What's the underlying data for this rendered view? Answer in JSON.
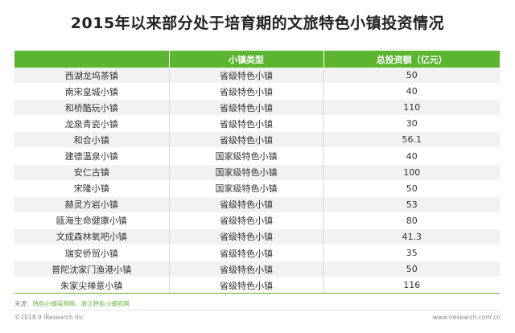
{
  "title": "2015年以来部分处于培育期的文旅特色小镇投资情况",
  "table": {
    "headers": [
      "",
      "小镇类型",
      "总投资额（亿元）"
    ],
    "rows": [
      {
        "name": "西湖龙坞茶镇",
        "type": "省级特色小镇",
        "investment": "50"
      },
      {
        "name": "南宋皇城小镇",
        "type": "省级特色小镇",
        "investment": "40"
      },
      {
        "name": "和桥酷玩小镇",
        "type": "省级特色小镇",
        "investment": "110"
      },
      {
        "name": "龙泉青瓷小镇",
        "type": "省级特色小镇",
        "investment": "30"
      },
      {
        "name": "和合小镇",
        "type": "省级特色小镇",
        "investment": "56.1"
      },
      {
        "name": "建德温泉小镇",
        "type": "国家级特色小镇",
        "investment": "40"
      },
      {
        "name": "安仁古镇",
        "type": "国家级特色小镇",
        "investment": "100"
      },
      {
        "name": "宋隆小镇",
        "type": "国家级特色小镇",
        "investment": "50"
      },
      {
        "name": "赫灵方岩小镇",
        "type": "省级特色小镇",
        "investment": "53"
      },
      {
        "name": "瓯海生命健康小镇",
        "type": "省级特色小镇",
        "investment": "80"
      },
      {
        "name": "文成森林氧吧小镇",
        "type": "省级特色小镇",
        "investment": "41.3"
      },
      {
        "name": "瑞安侨贸小镇",
        "type": "省级特色小镇",
        "investment": "35"
      },
      {
        "name": "普陀沈家门渔港小镇",
        "type": "省级特色小镇",
        "investment": "50"
      },
      {
        "name": "朱家尖禅意小镇",
        "type": "省级特色小镇",
        "investment": "116"
      }
    ]
  },
  "source": {
    "label": "来源：",
    "text": "特色小镇培育网、浙江特色小镇官网"
  },
  "footer": {
    "copyright": "©2018.9 iResearch Inc",
    "website": "www.iresearch.com.cn"
  },
  "colors": {
    "header_bg": "#5bb531",
    "stripe": "#f2f2f2"
  }
}
